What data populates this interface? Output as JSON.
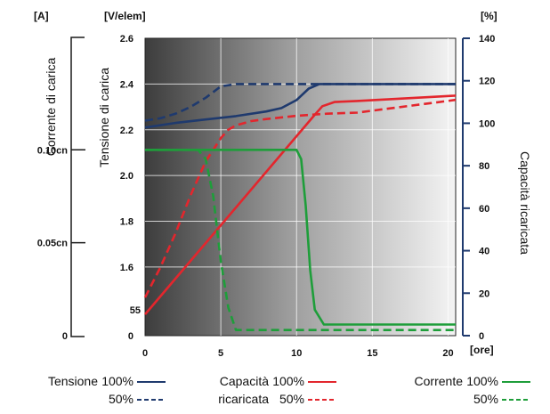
{
  "chart_data": {
    "type": "line",
    "units": {
      "left_current": "[A]",
      "left_voltage": "[V/elem]",
      "right_percent": "[%]",
      "x": "[ore]"
    },
    "axis_labels": {
      "current": "Corrente di carica",
      "voltage": "Tensione di carica",
      "capacity": "Capacità ricaricata"
    },
    "x_ticks": [
      "0",
      "5",
      "10",
      "15",
      "20"
    ],
    "xlim": [
      0,
      20.5
    ],
    "voltage_ticks": [
      "2.6",
      "2.4",
      "2.2",
      "2.0",
      "1.8",
      "1.6",
      "0"
    ],
    "voltage_tick_values": [
      2.6,
      2.4,
      2.2,
      2.0,
      1.8,
      1.6
    ],
    "voltage_lim": [
      1.3,
      2.6
    ],
    "percent_ticks": [
      "140",
      "120",
      "100",
      "80",
      "60",
      "40",
      "20",
      "0"
    ],
    "percent_lim": [
      0,
      140
    ],
    "current_ticks": [
      {
        "label": "0.10cn",
        "value": 0.1
      },
      {
        "label": "0.05cn",
        "value": 0.05
      },
      {
        "label": "0",
        "value": 0
      }
    ],
    "current_lim": [
      0,
      0.16
    ],
    "start_marker": "55",
    "series": [
      {
        "name": "Tensione",
        "variant": "100%",
        "axis": "voltage",
        "color": "#1f3a6e",
        "dash": false,
        "x": [
          0,
          2,
          4,
          6,
          8,
          9,
          10,
          10.8,
          11.5,
          20.5
        ],
        "y": [
          2.21,
          2.23,
          2.245,
          2.26,
          2.28,
          2.295,
          2.33,
          2.38,
          2.4,
          2.4
        ]
      },
      {
        "name": "Tensione",
        "variant": "50%",
        "axis": "voltage",
        "color": "#1f3a6e",
        "dash": true,
        "x": [
          0,
          1,
          2,
          3,
          4,
          5,
          6,
          20.5
        ],
        "y": [
          2.24,
          2.25,
          2.27,
          2.3,
          2.34,
          2.39,
          2.4,
          2.4
        ]
      },
      {
        "name": "Capacità ricaricata",
        "variant": "100%",
        "axis": "percent",
        "color": "#e3262d",
        "dash": false,
        "x": [
          0,
          11.2,
          11.7,
          12.5,
          14,
          20.5
        ],
        "y": [
          10,
          104,
          108,
          110,
          110.5,
          113
        ]
      },
      {
        "name": "Capacità ricaricata",
        "variant": "50%",
        "axis": "percent",
        "color": "#e3262d",
        "dash": true,
        "x": [
          0,
          1,
          2,
          3,
          4,
          5,
          5.5,
          6,
          7,
          8,
          10,
          12,
          14,
          20.5
        ],
        "y": [
          18,
          32,
          48,
          66,
          82,
          93,
          97,
          99,
          101,
          102,
          103.5,
          104.5,
          105,
          111
        ]
      },
      {
        "name": "Corrente",
        "variant": "100%",
        "axis": "current",
        "color": "#1e9e3a",
        "dash": false,
        "x": [
          0,
          10,
          10.3,
          10.6,
          10.9,
          11.2,
          11.8,
          20.5
        ],
        "y": [
          0.1,
          0.1,
          0.095,
          0.07,
          0.035,
          0.014,
          0.006,
          0.006
        ]
      },
      {
        "name": "Corrente",
        "variant": "50%",
        "axis": "current",
        "color": "#1e9e3a",
        "dash": true,
        "x": [
          0,
          3.5,
          4,
          4.5,
          5,
          5.5,
          6,
          20.5
        ],
        "y": [
          0.1,
          0.1,
          0.095,
          0.075,
          0.04,
          0.015,
          0.003,
          0.003
        ]
      }
    ],
    "legend": [
      {
        "label": "Tensione",
        "items": [
          {
            "text": "100%",
            "color": "#1f3a6e",
            "dash": false
          },
          {
            "text": "50%",
            "color": "#1f3a6e",
            "dash": true
          }
        ]
      },
      {
        "label": "Capacità ricaricata",
        "items": [
          {
            "text": "100%",
            "color": "#e3262d",
            "dash": false
          },
          {
            "text": "50%",
            "color": "#e3262d",
            "dash": true
          }
        ]
      },
      {
        "label": "Corrente",
        "items": [
          {
            "text": "100%",
            "color": "#1e9e3a",
            "dash": false
          },
          {
            "text": "50%",
            "color": "#1e9e3a",
            "dash": true
          }
        ]
      }
    ],
    "legend_placement": "bottom",
    "grid": true
  }
}
